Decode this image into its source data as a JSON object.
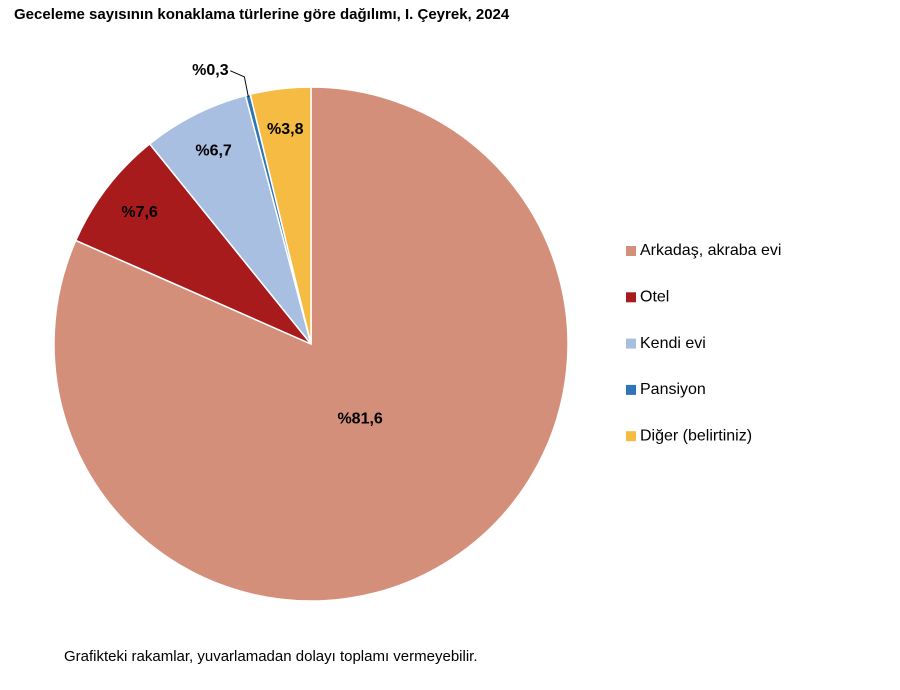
{
  "chart_data": {
    "type": "pie",
    "title": "Geceleme sayısının konaklama türlerine göre dağılımı, I. Çeyrek, 2024",
    "categories": [
      "Arkadaş, akraba evi",
      "Otel",
      "Kendi evi",
      "Pansiyon",
      "Diğer (belirtiniz)"
    ],
    "values": [
      81.6,
      7.6,
      6.7,
      0.3,
      3.8
    ],
    "value_labels": [
      "%81,6",
      "%7,6",
      "%6,7",
      "%0,3",
      "%3,8"
    ],
    "colors": [
      "#d48f7a",
      "#a81b1c",
      "#a8bfe2",
      "#2e75b6",
      "#f5bb42"
    ],
    "legend": "right",
    "note": "Grafikteki rakamlar, yuvarlamadan dolayı toplamı vermeyebilir."
  }
}
